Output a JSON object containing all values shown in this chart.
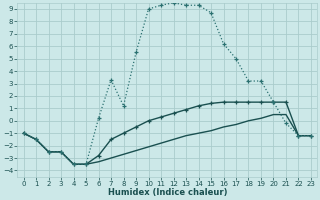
{
  "title": "",
  "xlabel": "Humidex (Indice chaleur)",
  "bg_color": "#cce8e8",
  "grid_color": "#aacccc",
  "line_color_dotted": "#2a7070",
  "line_color_solid1": "#1a5050",
  "line_color_solid2": "#1a5050",
  "xlim": [
    -0.5,
    23.5
  ],
  "ylim": [
    -4.5,
    9.5
  ],
  "xticks": [
    0,
    1,
    2,
    3,
    4,
    5,
    6,
    7,
    8,
    9,
    10,
    11,
    12,
    13,
    14,
    15,
    16,
    17,
    18,
    19,
    20,
    21,
    22,
    23
  ],
  "yticks": [
    -4,
    -3,
    -2,
    -1,
    0,
    1,
    2,
    3,
    4,
    5,
    6,
    7,
    8,
    9
  ],
  "curve1_x": [
    0,
    1,
    2,
    3,
    4,
    5,
    6,
    7,
    8,
    9,
    10,
    11,
    12,
    13,
    14,
    15,
    16,
    17,
    18,
    19,
    20,
    21,
    22,
    23
  ],
  "curve1_y": [
    -1,
    -1.5,
    -2.5,
    -2.5,
    -3.5,
    -3.5,
    0.2,
    3.3,
    1.2,
    5.5,
    9.0,
    9.3,
    9.5,
    9.3,
    9.3,
    8.7,
    6.2,
    5.0,
    3.2,
    3.2,
    1.5,
    -0.2,
    -1.2,
    -1.2
  ],
  "curve2_x": [
    0,
    1,
    2,
    3,
    4,
    5,
    6,
    7,
    8,
    9,
    10,
    11,
    12,
    13,
    14,
    15,
    16,
    17,
    18,
    19,
    20,
    21,
    22,
    23
  ],
  "curve2_y": [
    -1,
    -1.5,
    -2.5,
    -2.5,
    -3.5,
    -3.5,
    -2.8,
    -1.5,
    -1.0,
    -0.5,
    0.0,
    0.3,
    0.6,
    0.9,
    1.2,
    1.4,
    1.5,
    1.5,
    1.5,
    1.5,
    1.5,
    1.5,
    -1.2,
    -1.2
  ],
  "curve3_x": [
    0,
    1,
    2,
    3,
    4,
    5,
    6,
    7,
    8,
    9,
    10,
    11,
    12,
    13,
    14,
    15,
    16,
    17,
    18,
    19,
    20,
    21,
    22,
    23
  ],
  "curve3_y": [
    -1,
    -1.5,
    -2.5,
    -2.5,
    -3.5,
    -3.5,
    -3.3,
    -3.0,
    -2.7,
    -2.4,
    -2.1,
    -1.8,
    -1.5,
    -1.2,
    -1.0,
    -0.8,
    -0.5,
    -0.3,
    0.0,
    0.2,
    0.5,
    0.5,
    -1.2,
    -1.2
  ]
}
